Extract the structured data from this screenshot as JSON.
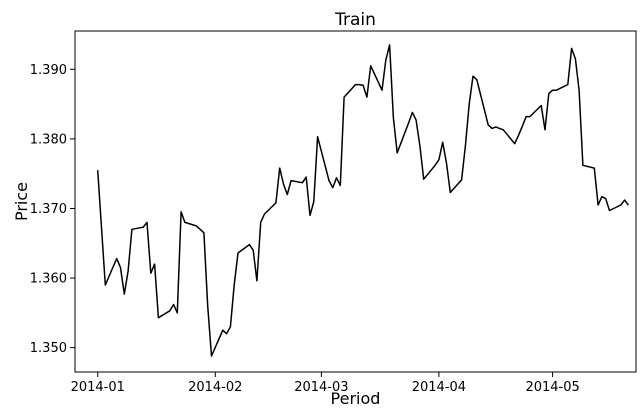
{
  "chart_data": {
    "type": "line",
    "title": "Train",
    "xlabel": "Period",
    "ylabel": "Price",
    "x_ticks": [
      "2014-01",
      "2014-02",
      "2014-03",
      "2014-04",
      "2014-05"
    ],
    "y_ticks": [
      "1.350",
      "1.360",
      "1.370",
      "1.380",
      "1.390"
    ],
    "x_range": [
      "2013-12-26",
      "2014-05-23"
    ],
    "ylim": [
      1.3465,
      1.3955
    ],
    "grid": false,
    "line_color": "#000000",
    "series": [
      {
        "x": [
          "2014-01-01",
          "2014-01-03",
          "2014-01-06",
          "2014-01-07",
          "2014-01-08",
          "2014-01-09",
          "2014-01-10",
          "2014-01-13",
          "2014-01-14",
          "2014-01-15",
          "2014-01-16",
          "2014-01-17",
          "2014-01-20",
          "2014-01-21",
          "2014-01-22",
          "2014-01-23",
          "2014-01-24",
          "2014-01-27",
          "2014-01-28",
          "2014-01-29",
          "2014-01-30",
          "2014-01-31",
          "2014-02-03",
          "2014-02-04",
          "2014-02-05",
          "2014-02-06",
          "2014-02-07",
          "2014-02-10",
          "2014-02-11",
          "2014-02-12",
          "2014-02-13",
          "2014-02-14",
          "2014-02-17",
          "2014-02-18",
          "2014-02-19",
          "2014-02-20",
          "2014-02-21",
          "2014-02-24",
          "2014-02-25",
          "2014-02-26",
          "2014-02-27",
          "2014-02-28",
          "2014-03-03",
          "2014-03-04",
          "2014-03-05",
          "2014-03-06",
          "2014-03-07",
          "2014-03-10",
          "2014-03-11",
          "2014-03-12",
          "2014-03-13",
          "2014-03-14",
          "2014-03-17",
          "2014-03-18",
          "2014-03-19",
          "2014-03-20",
          "2014-03-21",
          "2014-03-24",
          "2014-03-25",
          "2014-03-26",
          "2014-03-27",
          "2014-03-28",
          "2014-03-31",
          "2014-04-01",
          "2014-04-02",
          "2014-04-03",
          "2014-04-04",
          "2014-04-07",
          "2014-04-08",
          "2014-04-09",
          "2014-04-10",
          "2014-04-11",
          "2014-04-14",
          "2014-04-15",
          "2014-04-16",
          "2014-04-17",
          "2014-04-18",
          "2014-04-21",
          "2014-04-22",
          "2014-04-23",
          "2014-04-24",
          "2014-04-25",
          "2014-04-28",
          "2014-04-29",
          "2014-04-30",
          "2014-05-01",
          "2014-05-02",
          "2014-05-05",
          "2014-05-06",
          "2014-05-07",
          "2014-05-08",
          "2014-05-09",
          "2014-05-12",
          "2014-05-13",
          "2014-05-14",
          "2014-05-15",
          "2014-05-16",
          "2014-05-19",
          "2014-05-20",
          "2014-05-21"
        ],
        "y": [
          1.3755,
          1.359,
          1.3628,
          1.3615,
          1.3577,
          1.361,
          1.367,
          1.3673,
          1.368,
          1.3607,
          1.362,
          1.3543,
          1.3553,
          1.3562,
          1.355,
          1.3695,
          1.368,
          1.3675,
          1.367,
          1.3665,
          1.356,
          1.3488,
          1.3525,
          1.352,
          1.353,
          1.359,
          1.3636,
          1.3648,
          1.364,
          1.3596,
          1.368,
          1.3692,
          1.3708,
          1.3758,
          1.3735,
          1.372,
          1.374,
          1.3737,
          1.3745,
          1.369,
          1.371,
          1.3803,
          1.374,
          1.373,
          1.3744,
          1.3733,
          1.386,
          1.3878,
          1.3878,
          1.3877,
          1.386,
          1.3905,
          1.387,
          1.3913,
          1.3935,
          1.383,
          1.378,
          1.3823,
          1.3838,
          1.3827,
          1.379,
          1.3742,
          1.3762,
          1.377,
          1.3795,
          1.3765,
          1.3723,
          1.3741,
          1.379,
          1.385,
          1.389,
          1.3885,
          1.382,
          1.3815,
          1.3817,
          1.3815,
          1.3813,
          1.3793,
          1.3805,
          1.3818,
          1.3832,
          1.3832,
          1.3848,
          1.3813,
          1.3865,
          1.387,
          1.387,
          1.3878,
          1.393,
          1.3915,
          1.387,
          1.3762,
          1.3758,
          1.3705,
          1.3717,
          1.3714,
          1.3697,
          1.3705,
          1.3712,
          1.3705
        ]
      }
    ]
  }
}
